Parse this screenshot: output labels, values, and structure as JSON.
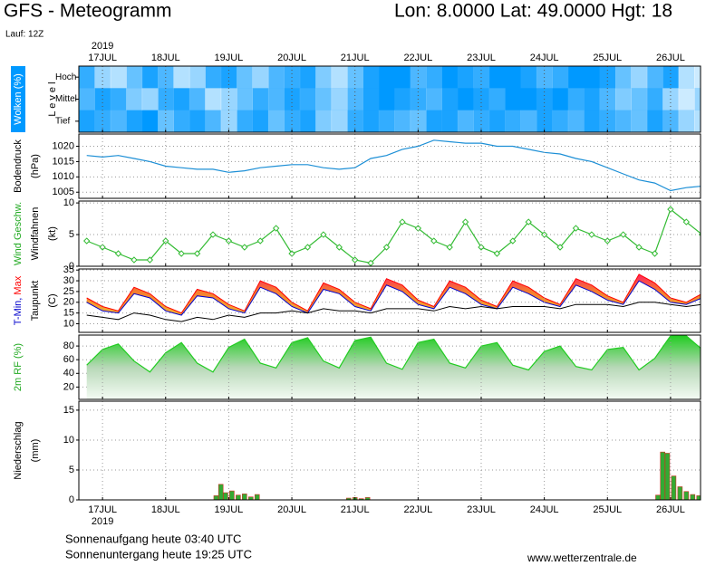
{
  "header": {
    "title": "GFS - Meteogramm",
    "location": "Lon: 8.0000 Lat: 49.0000 Hgt: 18",
    "run": "Lauf: 12Z"
  },
  "time_axis": {
    "year": "2019",
    "xlim": [
      -0.375,
      9.475
    ],
    "xticks": [
      {
        "value": 0,
        "label": "17JUL"
      },
      {
        "value": 1,
        "label": "18JUL"
      },
      {
        "value": 2,
        "label": "19JUL"
      },
      {
        "value": 3,
        "label": "20JUL"
      },
      {
        "value": 4,
        "label": "21JUL"
      },
      {
        "value": 5,
        "label": "22JUL"
      },
      {
        "value": 6,
        "label": "23JUL"
      },
      {
        "value": 7,
        "label": "24JUL"
      },
      {
        "value": 8,
        "label": "25JUL"
      },
      {
        "value": 9,
        "label": "26JUL"
      }
    ]
  },
  "chart_data": [
    {
      "type": "heatmap",
      "color": "#0099ff",
      "ylabel": [
        [
          {
            "text": "Wolken (%)",
            "color": "#ffffff",
            "background": "#0099ff"
          }
        ],
        [],
        [
          {
            "text": "L e v e l",
            "color": "#000000"
          }
        ]
      ],
      "categories": [
        "Hoch",
        "Mittel",
        "Tief"
      ],
      "x": [
        -0.25,
        0,
        0.25,
        0.5,
        0.75,
        1,
        1.25,
        1.5,
        1.75,
        2,
        2.25,
        2.5,
        2.75,
        3,
        3.25,
        3.5,
        3.75,
        4,
        4.25,
        4.5,
        4.75,
        5,
        5.25,
        5.5,
        5.75,
        6,
        6.25,
        6.5,
        6.75,
        7,
        7.25,
        7.5,
        7.75,
        8,
        8.25,
        8.5,
        8.75,
        9,
        9.25,
        9.5
      ],
      "values": [
        [
          20,
          60,
          70,
          40,
          10,
          30,
          70,
          60,
          20,
          10,
          40,
          60,
          30,
          20,
          10,
          50,
          70,
          40,
          10,
          0,
          0,
          30,
          20,
          0,
          10,
          20,
          0,
          0,
          10,
          30,
          20,
          0,
          0,
          10,
          40,
          60,
          30,
          10,
          70,
          80
        ],
        [
          30,
          10,
          20,
          50,
          60,
          20,
          10,
          30,
          70,
          60,
          40,
          20,
          30,
          10,
          20,
          40,
          60,
          30,
          10,
          0,
          10,
          20,
          30,
          10,
          0,
          10,
          20,
          0,
          0,
          10,
          0,
          20,
          10,
          30,
          50,
          40,
          20,
          60,
          80,
          60
        ],
        [
          10,
          20,
          30,
          10,
          0,
          40,
          20,
          10,
          30,
          60,
          20,
          10,
          40,
          20,
          10,
          50,
          60,
          20,
          10,
          20,
          30,
          40,
          10,
          10,
          30,
          20,
          10,
          20,
          30,
          10,
          20,
          30,
          10,
          20,
          30,
          40,
          10,
          30,
          60,
          70
        ]
      ]
    },
    {
      "type": "line",
      "color": "#1c8fd6",
      "grid": true,
      "ylabel": [
        [
          {
            "text": "Bodendruck",
            "color": "#000000"
          }
        ],
        [
          {
            "text": "(hPa)",
            "color": "#000000"
          }
        ]
      ],
      "ylim": [
        1003,
        1024
      ],
      "yticks": [
        1005,
        1010,
        1015,
        1020
      ],
      "x": [
        -0.25,
        0,
        0.25,
        0.5,
        0.75,
        1,
        1.25,
        1.5,
        1.75,
        2,
        2.25,
        2.5,
        2.75,
        3,
        3.25,
        3.5,
        3.75,
        4,
        4.25,
        4.5,
        4.75,
        5,
        5.25,
        5.5,
        5.75,
        6,
        6.25,
        6.5,
        6.75,
        7,
        7.25,
        7.5,
        7.75,
        8,
        8.25,
        8.5,
        8.75,
        9,
        9.25,
        9.5
      ],
      "values": [
        1017,
        1016.5,
        1017,
        1016,
        1015,
        1013.5,
        1013,
        1012.5,
        1012.5,
        1011.5,
        1012,
        1013,
        1013.5,
        1014,
        1014,
        1013,
        1012.5,
        1013,
        1016,
        1017,
        1019,
        1020,
        1022,
        1021.5,
        1021,
        1021,
        1020,
        1020,
        1019,
        1018,
        1017.5,
        1016,
        1015,
        1013,
        1011,
        1009,
        1008,
        1005.5,
        1006.5,
        1007
      ]
    },
    {
      "type": "line",
      "markers": true,
      "color": "#33bb33",
      "grid": true,
      "ylabel": [
        [
          {
            "text": "Wind Geschw.",
            "color": "#22aa22"
          }
        ],
        [
          {
            "text": "Windfahnen",
            "color": "#000000"
          }
        ],
        [
          {
            "text": "(kt)",
            "color": "#000000"
          }
        ]
      ],
      "ylim": [
        0,
        10.3
      ],
      "yticks": [
        0,
        5,
        10
      ],
      "x": [
        -0.25,
        0,
        0.25,
        0.5,
        0.75,
        1,
        1.25,
        1.5,
        1.75,
        2,
        2.25,
        2.5,
        2.75,
        3,
        3.25,
        3.5,
        3.75,
        4,
        4.25,
        4.5,
        4.75,
        5,
        5.25,
        5.5,
        5.75,
        6,
        6.25,
        6.5,
        6.75,
        7,
        7.25,
        7.5,
        7.75,
        8,
        8.25,
        8.5,
        8.75,
        9,
        9.25,
        9.5
      ],
      "values": [
        4,
        3,
        2,
        1,
        1,
        4,
        2,
        2,
        5,
        4,
        3,
        4,
        6,
        2,
        3,
        5,
        3,
        1,
        0.5,
        3,
        7,
        6,
        4,
        3,
        7,
        3,
        2,
        4,
        7,
        5,
        3,
        6,
        5,
        4,
        5,
        3,
        2,
        9,
        7,
        5
      ]
    },
    {
      "type": "range",
      "grid": true,
      "ylabel": [
        [
          {
            "text": "T-Min,",
            "color": "#0000cc"
          },
          {
            "text": " Max",
            "color": "#ff0000"
          }
        ],
        [
          {
            "text": "Taupunkt",
            "color": "#000000"
          }
        ],
        [
          {
            "text": "(C)",
            "color": "#000000"
          }
        ]
      ],
      "ylim": [
        6,
        35.5
      ],
      "yticks": [
        10,
        15,
        20,
        25,
        30,
        35
      ],
      "x": [
        -0.25,
        0,
        0.25,
        0.5,
        0.75,
        1,
        1.25,
        1.5,
        1.75,
        2,
        2.25,
        2.5,
        2.75,
        3,
        3.25,
        3.5,
        3.75,
        4,
        4.25,
        4.5,
        4.75,
        5,
        5.25,
        5.5,
        5.75,
        6,
        6.25,
        6.5,
        6.75,
        7,
        7.25,
        7.5,
        7.75,
        8,
        8.25,
        8.5,
        8.75,
        9,
        9.25,
        9.5
      ],
      "series": [
        {
          "color": "#ff0000",
          "values": [
            22,
            18,
            16,
            27,
            24,
            18,
            15,
            26,
            24,
            19,
            16,
            30,
            27,
            20,
            16,
            29,
            26,
            20,
            17,
            31,
            28,
            21,
            18,
            30,
            27,
            21,
            18,
            30,
            27,
            22,
            19,
            31,
            28,
            23,
            20,
            33,
            29,
            22,
            20,
            24
          ]
        },
        {
          "color": "#0000cc",
          "values": [
            20,
            16,
            15,
            24,
            22,
            16,
            14,
            23,
            22,
            17,
            15,
            27,
            24,
            18,
            15,
            26,
            24,
            18,
            16,
            28,
            25,
            19,
            17,
            27,
            24,
            19,
            17,
            27,
            24,
            20,
            18,
            28,
            25,
            21,
            19,
            30,
            26,
            20,
            19,
            22
          ]
        },
        {
          "color": "#000000",
          "values": [
            14,
            13,
            12,
            15,
            14,
            12,
            11,
            13,
            12,
            14,
            13,
            15,
            15,
            16,
            15,
            17,
            16,
            16,
            15,
            17,
            17,
            17,
            16,
            18,
            17,
            18,
            17,
            18,
            18,
            18,
            17,
            19,
            19,
            19,
            18,
            20,
            20,
            19,
            18,
            19
          ]
        }
      ]
    },
    {
      "type": "area",
      "color": "#22cc22",
      "grid": true,
      "ylabel": [
        [
          {
            "text": "2m RF (%)",
            "color": "#22aa22"
          }
        ]
      ],
      "ylim": [
        2,
        96
      ],
      "yticks": [
        20,
        40,
        60,
        80
      ],
      "x": [
        -0.25,
        0,
        0.25,
        0.5,
        0.75,
        1,
        1.25,
        1.5,
        1.75,
        2,
        2.25,
        2.5,
        2.75,
        3,
        3.25,
        3.5,
        3.75,
        4,
        4.25,
        4.5,
        4.75,
        5,
        5.25,
        5.5,
        5.75,
        6,
        6.25,
        6.5,
        6.75,
        7,
        7.25,
        7.5,
        7.75,
        8,
        8.25,
        8.5,
        8.75,
        9,
        9.25,
        9.5
      ],
      "values": [
        52,
        75,
        83,
        58,
        42,
        70,
        85,
        55,
        42,
        78,
        90,
        55,
        48,
        85,
        92,
        58,
        48,
        88,
        93,
        55,
        46,
        85,
        90,
        55,
        48,
        80,
        85,
        52,
        45,
        72,
        80,
        50,
        45,
        75,
        78,
        45,
        62,
        95,
        95,
        75
      ]
    },
    {
      "type": "bar",
      "color": "#33aa33",
      "grid": true,
      "ylabel": [
        [
          {
            "text": "Niederschlag",
            "color": "#000000"
          }
        ],
        [
          {
            "text": "(mm)",
            "color": "#000000"
          }
        ]
      ],
      "ylim": [
        0,
        16.5
      ],
      "yticks": [
        0,
        5,
        10,
        15
      ],
      "x": [
        1.8,
        1.875,
        1.95,
        2.05,
        2.15,
        2.25,
        2.35,
        2.45,
        3.9,
        4.0,
        4.1,
        4.2,
        8.8,
        8.875,
        8.95,
        9.05,
        9.15,
        9.25,
        9.35,
        9.45
      ],
      "values": [
        0.7,
        2.6,
        1.2,
        1.5,
        0.8,
        1.0,
        0.5,
        0.9,
        0.3,
        0.4,
        0.2,
        0.4,
        0.8,
        8.0,
        7.8,
        4.0,
        2.2,
        1.4,
        0.9,
        0.7
      ]
    }
  ],
  "footer": {
    "sunrise": "Sonnenaufgang heute 03:40 UTC",
    "sunset": "Sonnenuntergang heute 19:25 UTC",
    "source": "www.wetterzentrale.de"
  }
}
